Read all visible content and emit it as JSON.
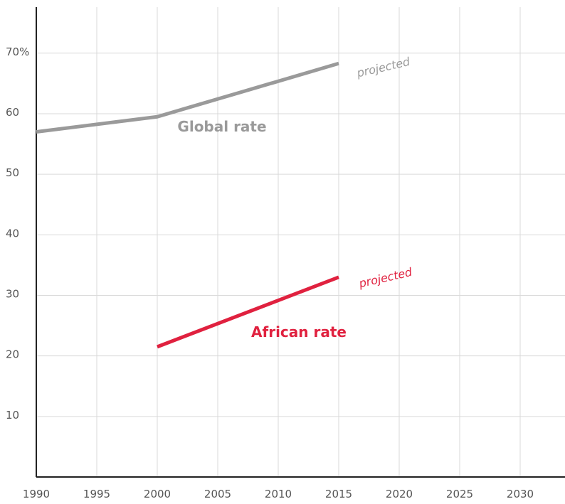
{
  "chart_data": {
    "type": "line",
    "x_ticks": [
      1990,
      1995,
      2000,
      2005,
      2010,
      2015,
      2020,
      2025,
      2030
    ],
    "y_ticks": [
      {
        "value": 10,
        "label": "10"
      },
      {
        "value": 20,
        "label": "20"
      },
      {
        "value": 30,
        "label": "30"
      },
      {
        "value": 40,
        "label": "40"
      },
      {
        "value": 50,
        "label": "50"
      },
      {
        "value": 60,
        "label": "60"
      },
      {
        "value": 70,
        "label": "70%"
      }
    ],
    "xlim": [
      1990,
      2032
    ],
    "ylim": [
      0,
      78
    ],
    "grid": true,
    "series": [
      {
        "name": "Global rate",
        "color": "#9a9a9a",
        "points": [
          [
            1990,
            57
          ],
          [
            2000,
            59.5
          ],
          [
            2015,
            68.3
          ]
        ],
        "projected_label": "projected"
      },
      {
        "name": "African rate",
        "color": "#e0213f",
        "points": [
          [
            2000,
            21.5
          ],
          [
            2015,
            33
          ]
        ],
        "projected_label": "projected"
      }
    ]
  }
}
